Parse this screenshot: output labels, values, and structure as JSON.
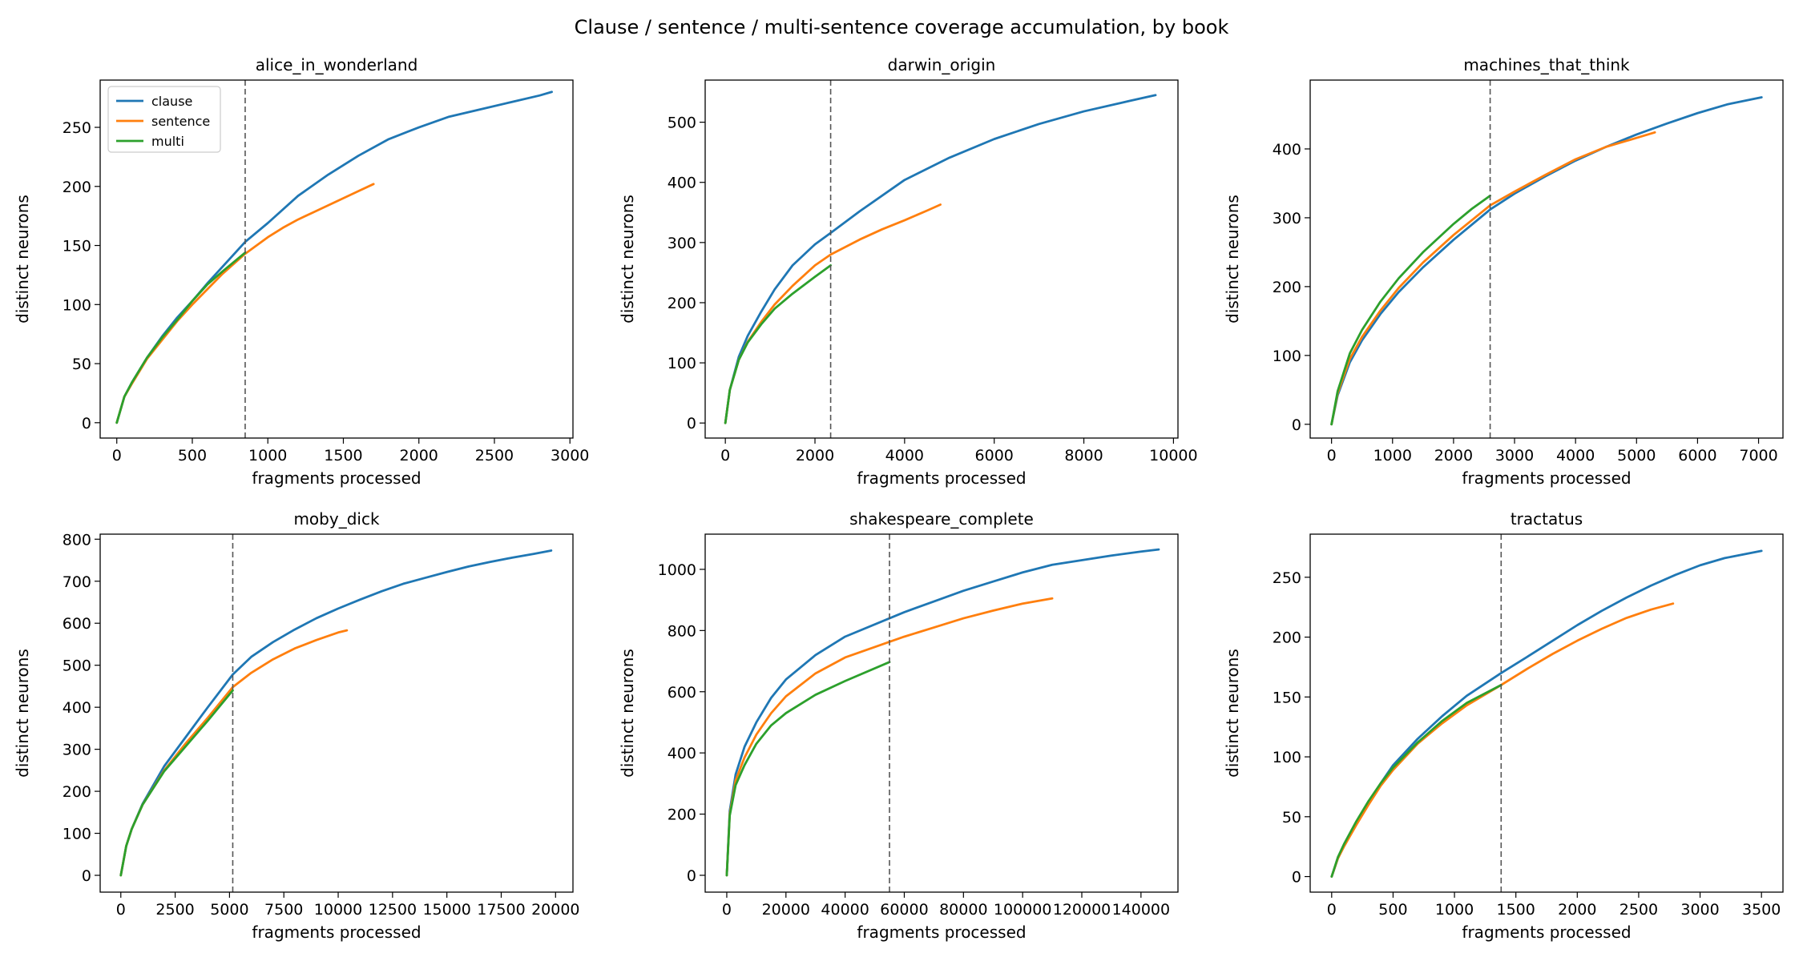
{
  "figure": {
    "title": "Clause / sentence / multi-sentence coverage accumulation, by book"
  },
  "colors": {
    "clause": "#1f77b4",
    "sentence": "#ff7f0e",
    "multi": "#2ca02c",
    "cutoff": "#555555"
  },
  "legend": {
    "placement": "upper-left",
    "entries": [
      "clause",
      "sentence",
      "multi"
    ],
    "shown_in_panel": 0
  },
  "chart_data": [
    {
      "type": "line",
      "title": "alice_in_wonderland",
      "xlabel": "fragments processed",
      "ylabel": "distinct neurons",
      "xlim": [
        -110,
        3020
      ],
      "ylim": [
        -13,
        290
      ],
      "xticks": [
        0,
        500,
        1000,
        1500,
        2000,
        2500,
        3000
      ],
      "yticks": [
        0,
        50,
        100,
        150,
        200,
        250
      ],
      "vline": 850,
      "series": [
        {
          "name": "clause",
          "x": [
            0,
            50,
            100,
            200,
            300,
            400,
            500,
            600,
            700,
            850,
            1000,
            1200,
            1400,
            1600,
            1800,
            2000,
            2200,
            2400,
            2600,
            2800,
            2880
          ],
          "y": [
            0,
            22,
            34,
            55,
            73,
            89,
            103,
            118,
            132,
            153,
            169,
            192,
            210,
            226,
            240,
            250,
            259,
            265,
            271,
            277,
            280
          ]
        },
        {
          "name": "sentence",
          "x": [
            0,
            50,
            100,
            200,
            300,
            400,
            500,
            600,
            700,
            850,
            1000,
            1100,
            1200,
            1300,
            1400,
            1500,
            1600,
            1700
          ],
          "y": [
            0,
            22,
            33,
            54,
            70,
            86,
            100,
            113,
            126,
            143,
            157,
            165,
            172,
            178,
            184,
            190,
            196,
            202
          ]
        },
        {
          "name": "multi",
          "x": [
            0,
            50,
            100,
            200,
            300,
            400,
            500,
            600,
            700,
            850
          ],
          "y": [
            0,
            22,
            34,
            55,
            72,
            87,
            103,
            117,
            128,
            144
          ]
        }
      ]
    },
    {
      "type": "line",
      "title": "darwin_origin",
      "xlabel": "fragments processed",
      "ylabel": "distinct neurons",
      "xlim": [
        -450,
        10100
      ],
      "ylim": [
        -25,
        570
      ],
      "xticks": [
        0,
        2000,
        4000,
        6000,
        8000,
        10000
      ],
      "yticks": [
        0,
        100,
        200,
        300,
        400,
        500
      ],
      "vline": 2350,
      "series": [
        {
          "name": "clause",
          "x": [
            0,
            100,
            300,
            500,
            800,
            1100,
            1500,
            2000,
            2350,
            3000,
            4000,
            5000,
            6000,
            7000,
            8000,
            9000,
            9600
          ],
          "y": [
            0,
            55,
            110,
            145,
            185,
            222,
            262,
            297,
            316,
            352,
            404,
            441,
            472,
            497,
            518,
            535,
            545
          ]
        },
        {
          "name": "sentence",
          "x": [
            0,
            100,
            300,
            500,
            800,
            1100,
            1500,
            2000,
            2350,
            3000,
            3500,
            4000,
            4500,
            4800
          ],
          "y": [
            0,
            55,
            105,
            135,
            168,
            197,
            228,
            262,
            280,
            305,
            322,
            337,
            353,
            363
          ]
        },
        {
          "name": "multi",
          "x": [
            0,
            100,
            300,
            500,
            800,
            1100,
            1500,
            2000,
            2350
          ],
          "y": [
            0,
            55,
            105,
            134,
            164,
            190,
            215,
            243,
            262
          ]
        }
      ]
    },
    {
      "type": "line",
      "title": "machines_that_think",
      "xlabel": "fragments processed",
      "ylabel": "distinct neurons",
      "xlim": [
        -350,
        7400
      ],
      "ylim": [
        -20,
        500
      ],
      "xticks": [
        0,
        1000,
        2000,
        3000,
        4000,
        5000,
        6000,
        7000
      ],
      "yticks": [
        0,
        100,
        200,
        300,
        400
      ],
      "vline": 2600,
      "series": [
        {
          "name": "clause",
          "x": [
            0,
            100,
            300,
            500,
            800,
            1100,
            1500,
            2000,
            2600,
            3000,
            3500,
            4000,
            4500,
            5000,
            5500,
            6000,
            6500,
            7050
          ],
          "y": [
            0,
            42,
            90,
            122,
            160,
            192,
            228,
            268,
            312,
            335,
            360,
            383,
            403,
            421,
            437,
            452,
            465,
            475
          ]
        },
        {
          "name": "sentence",
          "x": [
            0,
            100,
            300,
            500,
            800,
            1100,
            1500,
            2000,
            2600,
            3000,
            3500,
            4000,
            4500,
            5000,
            5300
          ],
          "y": [
            0,
            45,
            95,
            127,
            165,
            198,
            235,
            275,
            318,
            338,
            362,
            385,
            403,
            416,
            424
          ]
        },
        {
          "name": "multi",
          "x": [
            0,
            100,
            300,
            500,
            800,
            1100,
            1500,
            2000,
            2300,
            2600
          ],
          "y": [
            0,
            48,
            103,
            137,
            178,
            212,
            250,
            291,
            313,
            332
          ]
        }
      ]
    },
    {
      "type": "line",
      "title": "moby_dick",
      "xlabel": "fragments processed",
      "ylabel": "distinct neurons",
      "xlim": [
        -950,
        20800
      ],
      "ylim": [
        -40,
        812
      ],
      "xticks": [
        0,
        2500,
        5000,
        7500,
        10000,
        12500,
        15000,
        17500,
        20000
      ],
      "yticks": [
        0,
        100,
        200,
        300,
        400,
        500,
        600,
        700,
        800
      ],
      "vline": 5150,
      "series": [
        {
          "name": "clause",
          "x": [
            0,
            250,
            500,
            1000,
            2000,
            3000,
            4000,
            5150,
            6000,
            7000,
            8000,
            9000,
            10000,
            11000,
            12000,
            13000,
            14000,
            15000,
            16000,
            17000,
            18000,
            19000,
            19800
          ],
          "y": [
            0,
            70,
            110,
            170,
            260,
            330,
            400,
            478,
            520,
            555,
            585,
            612,
            635,
            656,
            676,
            694,
            708,
            722,
            735,
            746,
            756,
            765,
            773
          ]
        },
        {
          "name": "sentence",
          "x": [
            0,
            250,
            500,
            1000,
            2000,
            3000,
            4000,
            5150,
            6000,
            7000,
            8000,
            9000,
            10000,
            10400
          ],
          "y": [
            0,
            70,
            110,
            168,
            250,
            315,
            375,
            448,
            482,
            514,
            540,
            560,
            578,
            583
          ]
        },
        {
          "name": "multi",
          "x": [
            0,
            250,
            500,
            1000,
            2000,
            3000,
            4000,
            5150
          ],
          "y": [
            0,
            70,
            110,
            168,
            248,
            308,
            368,
            440
          ]
        }
      ]
    },
    {
      "type": "line",
      "title": "shakespeare_complete",
      "xlabel": "fragments processed",
      "ylabel": "distinct neurons",
      "xlim": [
        -7300,
        152500
      ],
      "ylim": [
        -55,
        1115
      ],
      "xticks": [
        0,
        20000,
        40000,
        60000,
        80000,
        100000,
        120000,
        140000
      ],
      "yticks": [
        0,
        200,
        400,
        600,
        800,
        1000
      ],
      "vline": 55000,
      "series": [
        {
          "name": "clause",
          "x": [
            0,
            1000,
            3000,
            6000,
            10000,
            15000,
            20000,
            30000,
            40000,
            55000,
            60000,
            70000,
            80000,
            90000,
            100000,
            110000,
            120000,
            130000,
            140000,
            146000
          ],
          "y": [
            0,
            210,
            330,
            420,
            500,
            580,
            640,
            720,
            780,
            840,
            860,
            895,
            930,
            960,
            990,
            1015,
            1030,
            1045,
            1058,
            1065
          ]
        },
        {
          "name": "sentence",
          "x": [
            0,
            1000,
            3000,
            6000,
            10000,
            15000,
            20000,
            30000,
            40000,
            55000,
            60000,
            70000,
            80000,
            90000,
            100000,
            110000
          ],
          "y": [
            0,
            200,
            310,
            385,
            460,
            530,
            585,
            660,
            712,
            763,
            780,
            810,
            840,
            865,
            888,
            905
          ]
        },
        {
          "name": "multi",
          "x": [
            0,
            1000,
            3000,
            6000,
            10000,
            15000,
            20000,
            30000,
            40000,
            55000
          ],
          "y": [
            0,
            195,
            295,
            360,
            430,
            490,
            530,
            590,
            635,
            697
          ]
        }
      ]
    },
    {
      "type": "line",
      "title": "tractatus",
      "xlabel": "fragments processed",
      "ylabel": "distinct neurons",
      "xlim": [
        -175,
        3675
      ],
      "ylim": [
        -13,
        286
      ],
      "xticks": [
        0,
        500,
        1000,
        1500,
        2000,
        2500,
        3000,
        3500
      ],
      "yticks": [
        0,
        50,
        100,
        150,
        200,
        250
      ],
      "vline": 1380,
      "series": [
        {
          "name": "clause",
          "x": [
            0,
            50,
            100,
            200,
            300,
            400,
            500,
            700,
            900,
            1100,
            1380,
            1600,
            1800,
            2000,
            2200,
            2400,
            2600,
            2800,
            3000,
            3200,
            3400,
            3500
          ],
          "y": [
            0,
            15,
            26,
            45,
            62,
            78,
            93,
            115,
            134,
            151,
            170,
            184,
            197,
            210,
            222,
            233,
            243,
            252,
            260,
            266,
            270,
            272
          ]
        },
        {
          "name": "sentence",
          "x": [
            0,
            50,
            100,
            200,
            300,
            400,
            500,
            700,
            900,
            1100,
            1380,
            1600,
            1800,
            2000,
            2200,
            2400,
            2600,
            2780
          ],
          "y": [
            0,
            15,
            25,
            43,
            60,
            76,
            89,
            111,
            128,
            143,
            160,
            174,
            186,
            197,
            207,
            216,
            223,
            228
          ]
        },
        {
          "name": "multi",
          "x": [
            0,
            50,
            100,
            200,
            300,
            400,
            500,
            700,
            900,
            1100,
            1380
          ],
          "y": [
            0,
            16,
            27,
            46,
            63,
            78,
            91,
            112,
            130,
            145,
            160
          ]
        }
      ]
    }
  ]
}
